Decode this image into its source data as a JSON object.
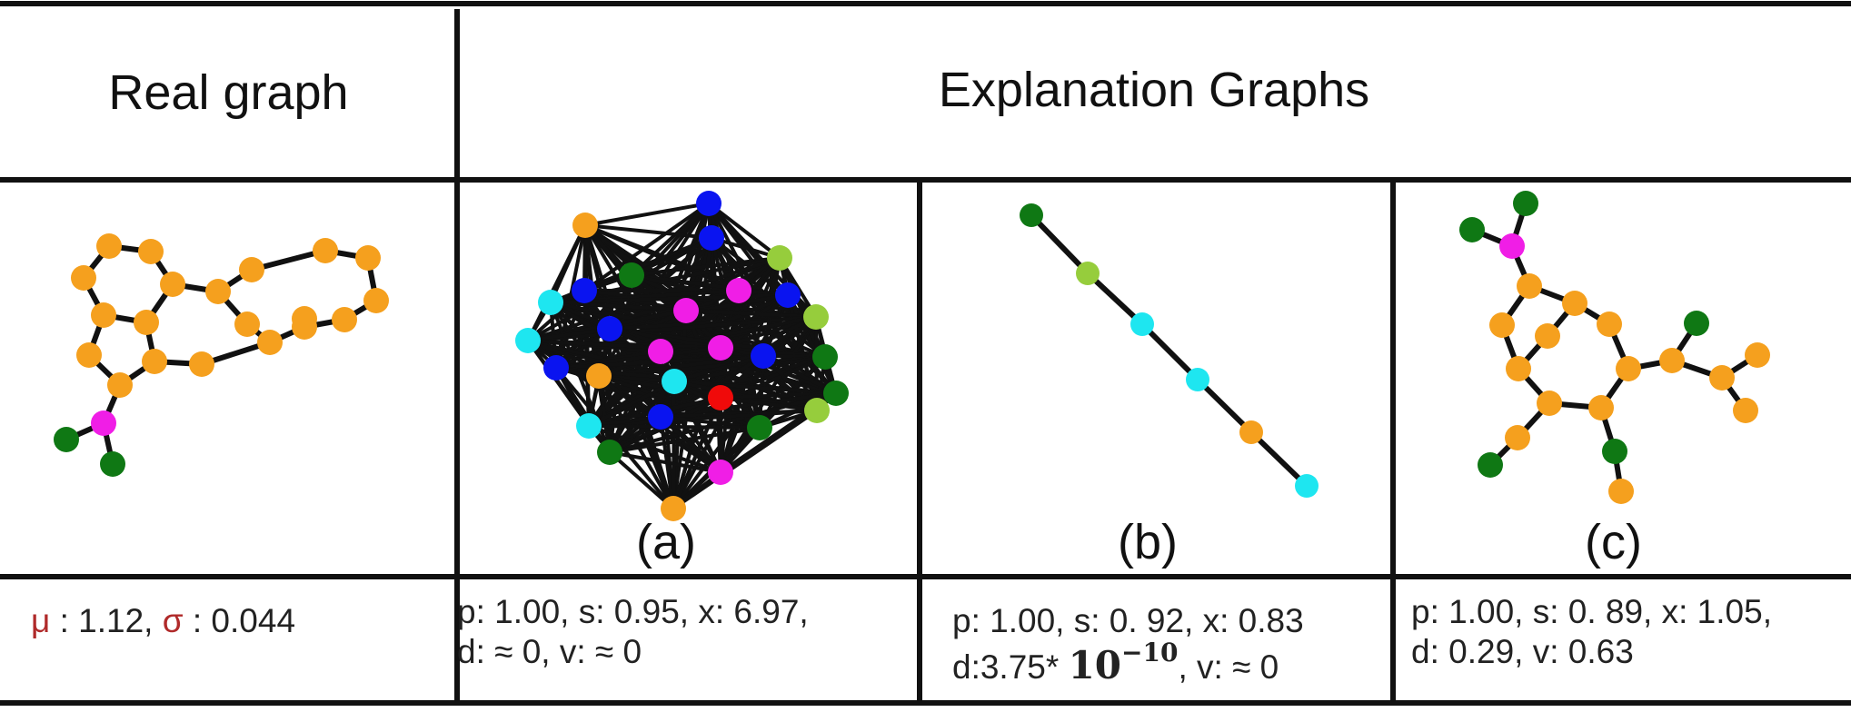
{
  "header": {
    "real_graph": "Real graph",
    "explanation_graphs": "Explanation Graphs"
  },
  "panels": {
    "a": "(a)",
    "b": "(b)",
    "c": "(c)"
  },
  "stats": {
    "real": {
      "mu_symbol": "μ",
      "mu_text": " : 1.12, ",
      "sigma_symbol": "σ",
      "sigma_text": " : 0.044"
    },
    "a": {
      "line1": "p: 1.00, s: 0.95, x: 6.97,",
      "line2": "d: ≈ 0, v: ≈ 0"
    },
    "b": {
      "line1": "p: 1.00, s: 0. 92, x: 0.83",
      "line2_prefix": "d:3.75* ",
      "power_base": "10",
      "power_exp": "−10",
      "line2_suffix": ", v: ≈ 0"
    },
    "c": {
      "line1": "p: 1.00, s: 0. 89, x: 1.05,",
      "line2": "d: 0.29, v: 0.63"
    }
  },
  "node_colors": {
    "orange": "#F5A01E",
    "magenta": "#F01EE6",
    "dark_green": "#0F7814",
    "light_green": "#96CD3C",
    "cyan": "#1EE6F0",
    "blue": "#0A14F0",
    "red": "#F00A0A"
  }
}
